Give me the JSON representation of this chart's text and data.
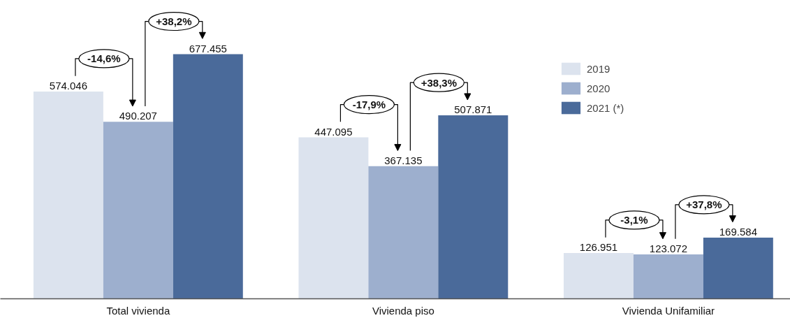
{
  "chart_data": {
    "type": "bar",
    "categories": [
      "Total vivienda",
      "Vivienda piso",
      "Vivienda Unifamiliar"
    ],
    "series": [
      {
        "name": "2019",
        "color": "#dce3ee",
        "values": [
          574046,
          447095,
          126951
        ],
        "value_labels": [
          "574.046",
          "447.095",
          "126.951"
        ]
      },
      {
        "name": "2020",
        "color": "#9dafce",
        "values": [
          490207,
          367135,
          123072
        ],
        "value_labels": [
          "490.207",
          "367.135",
          "123.072"
        ]
      },
      {
        "name": "2021 (*)",
        "color": "#4a6a9a",
        "values": [
          677455,
          507871,
          169584
        ],
        "value_labels": [
          "677.455",
          "507.871",
          "169.584"
        ]
      }
    ],
    "annotations": [
      "-14,6%",
      "+38,2%",
      "-17,9%",
      "+38,3%",
      "-3,1%",
      "+37,8%"
    ],
    "legend": "top right",
    "grid": false
  }
}
